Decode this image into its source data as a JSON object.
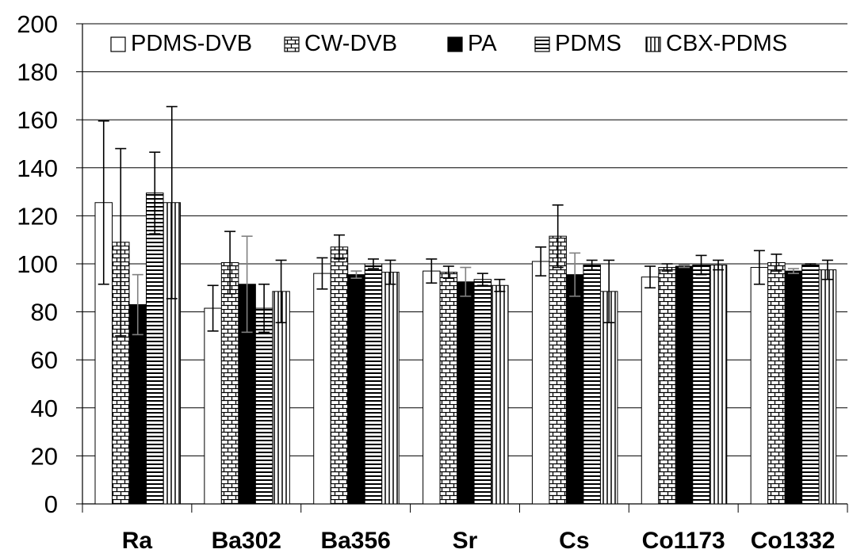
{
  "chart_data": {
    "type": "bar",
    "title": "",
    "xlabel": "",
    "ylabel": "",
    "ylim": [
      0,
      200
    ],
    "yticks": [
      0,
      20,
      40,
      60,
      80,
      100,
      120,
      140,
      160,
      180,
      200
    ],
    "grid": true,
    "legend_position": "top",
    "categories": [
      "Ra",
      "Ba302",
      "Ba356",
      "Sr",
      "Cs",
      "Co1173",
      "Co1332"
    ],
    "series": [
      {
        "name": "PDMS-DVB",
        "pattern": "empty",
        "values": [
          125.5,
          81.5,
          96,
          97,
          101,
          94.5,
          98.5
        ],
        "errors": [
          34,
          9.5,
          6.5,
          5,
          6,
          4.5,
          7
        ]
      },
      {
        "name": "CW-DVB",
        "pattern": "brick",
        "values": [
          109,
          100.5,
          107,
          96.5,
          111.5,
          98.5,
          100.5
        ],
        "errors": [
          39,
          13,
          5,
          2.5,
          13,
          1.5,
          3.5
        ]
      },
      {
        "name": "PA",
        "pattern": "solid",
        "values": [
          83,
          91.5,
          95.5,
          92.5,
          95.5,
          99,
          97
        ],
        "errors": [
          12.5,
          20,
          1.5,
          6,
          9,
          0.5,
          1
        ]
      },
      {
        "name": "PDMS",
        "pattern": "horizontal",
        "values": [
          129.5,
          81.5,
          100,
          93.5,
          99.5,
          99.5,
          99.5
        ],
        "errors": [
          17,
          10,
          2,
          2.5,
          2,
          4,
          0.5
        ]
      },
      {
        "name": "CBX-PDMS",
        "pattern": "vertical",
        "values": [
          125.5,
          88.5,
          96.5,
          91,
          88.5,
          99.5,
          97.5
        ],
        "errors": [
          40,
          13,
          5,
          2.5,
          13,
          2,
          4
        ]
      }
    ],
    "colors": {
      "stroke": "#000000",
      "fill_light": "#ffffff",
      "fill_dark": "#000000",
      "grid": "#000000",
      "error_grey": "#808080"
    }
  }
}
